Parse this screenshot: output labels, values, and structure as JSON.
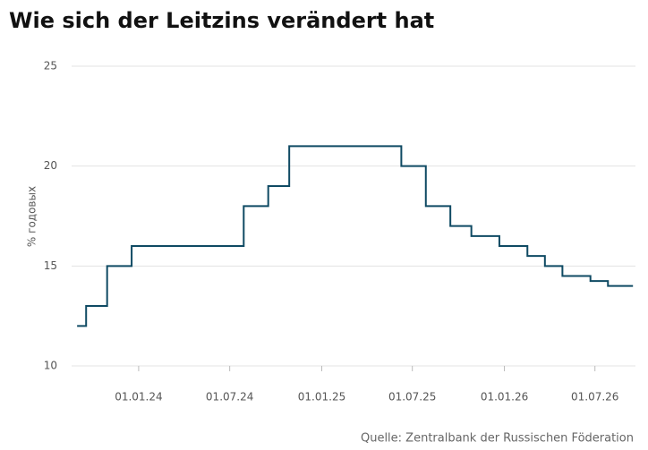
{
  "chart_data": {
    "type": "step",
    "title": "Wie sich der Leitzins verändert hat",
    "y_label": "% годовых",
    "source": "Quelle: Zentralbank der Russischen Föderation",
    "x": [
      "31.08.23",
      "18.09.23",
      "30.10.23",
      "18.12.23",
      "29.07.24",
      "16.09.24",
      "28.10.24",
      "09.06.25",
      "28.07.25",
      "15.09.25",
      "27.10.25",
      "22.12.25",
      "16.02.26",
      "23.03.26",
      "27.04.26",
      "22.06.26",
      "27.07.26",
      "15.09.26"
    ],
    "values": [
      12,
      13,
      15,
      16,
      18,
      19,
      21,
      20,
      18,
      17,
      16.5,
      16,
      15.5,
      15,
      14.5,
      14.25,
      14,
      14
    ],
    "color": "#0f4a63",
    "xlim": [
      "20.08.23",
      "20.09.26"
    ],
    "xticks": [
      "01.01.24",
      "01.07.24",
      "01.01.25",
      "01.07.25",
      "01.01.26",
      "01.07.26"
    ],
    "ylim": [
      10,
      25
    ],
    "yticks": [
      10,
      15,
      20,
      25
    ],
    "grid": true
  }
}
